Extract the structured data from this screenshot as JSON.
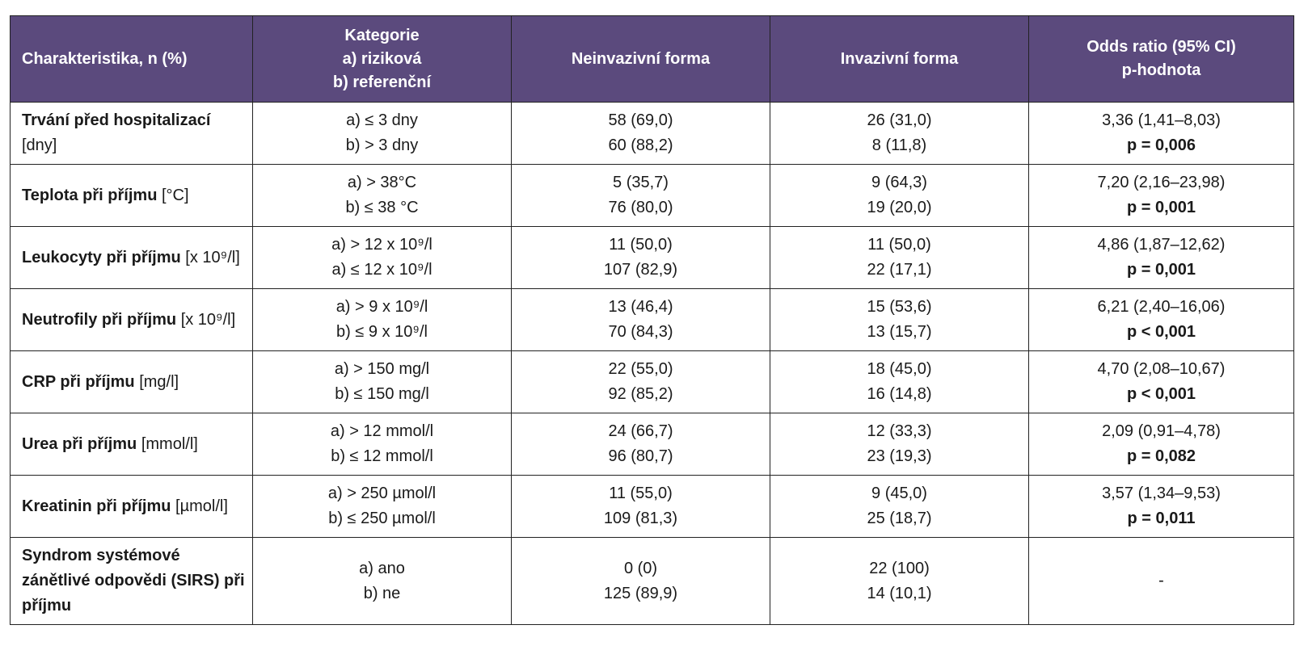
{
  "headers": {
    "characteristic": "Charakteristika, n (%)",
    "category": [
      "Kategorie",
      "a) riziková",
      "b) referenční"
    ],
    "noninvasive": "Neinvazivní forma",
    "invasive": "Invazivní forma",
    "odds": [
      "Odds ratio (95% CI)",
      "p-hodnota"
    ]
  },
  "rows": [
    {
      "name": "Trvání před hospitalizací",
      "unit": "[dny]",
      "cat_a": "a) ≤ 3 dny",
      "cat_b": "b) > 3 dny",
      "non_a": "58 (69,0)",
      "non_b": "60 (88,2)",
      "inv_a": "26 (31,0)",
      "inv_b": "8 (11,8)",
      "or": "3,36 (1,41–8,03)",
      "p": "p = 0,006"
    },
    {
      "name": "Teplota při příjmu",
      "unit": "[°C]",
      "cat_a": "a) > 38°C",
      "cat_b": "b) ≤ 38 °C",
      "non_a": "5 (35,7)",
      "non_b": "76 (80,0)",
      "inv_a": "9 (64,3)",
      "inv_b": "19 (20,0)",
      "or": "7,20 (2,16–23,98)",
      "p": "p = 0,001"
    },
    {
      "name": "Leukocyty při příjmu",
      "unit": "[x 10⁹/l]",
      "cat_a": "a) > 12 x 10⁹/l",
      "cat_b": "a) ≤ 12 x 10⁹/l",
      "non_a": "11 (50,0)",
      "non_b": "107 (82,9)",
      "inv_a": "11 (50,0)",
      "inv_b": "22 (17,1)",
      "or": "4,86 (1,87–12,62)",
      "p": "p = 0,001"
    },
    {
      "name": "Neutrofily při příjmu",
      "unit": "[x 10⁹/l]",
      "cat_a": "a) > 9 x 10⁹/l",
      "cat_b": "b) ≤ 9 x 10⁹/l",
      "non_a": "13 (46,4)",
      "non_b": "70 (84,3)",
      "inv_a": "15 (53,6)",
      "inv_b": "13 (15,7)",
      "or": "6,21 (2,40–16,06)",
      "p": "p < 0,001"
    },
    {
      "name": "CRP při příjmu",
      "unit": "[mg/l]",
      "cat_a": "a) > 150 mg/l",
      "cat_b": "b) ≤ 150 mg/l",
      "non_a": "22 (55,0)",
      "non_b": "92 (85,2)",
      "inv_a": "18 (45,0)",
      "inv_b": "16 (14,8)",
      "or": "4,70 (2,08–10,67)",
      "p": "p < 0,001"
    },
    {
      "name": "Urea při příjmu",
      "unit": "[mmol/l]",
      "cat_a": "a) > 12 mmol/l",
      "cat_b": "b) ≤ 12 mmol/l",
      "non_a": "24 (66,7)",
      "non_b": "96 (80,7)",
      "inv_a": "12 (33,3)",
      "inv_b": "23 (19,3)",
      "or": "2,09 (0,91–4,78)",
      "p": "p = 0,082"
    },
    {
      "name": "Kreatinin při příjmu",
      "unit": "[µmol/l]",
      "cat_a": "a) > 250 µmol/l",
      "cat_b": "b) ≤ 250 µmol/l",
      "non_a": "11 (55,0)",
      "non_b": "109 (81,3)",
      "inv_a": "9 (45,0)",
      "inv_b": "25 (18,7)",
      "or": "3,57 (1,34–9,53)",
      "p": "p = 0,011"
    },
    {
      "name": "Syndrom systémové zánětlivé odpovědi (SIRS) při příjmu",
      "unit": "",
      "cat_a": "a) ano",
      "cat_b": "b) ne",
      "non_a": "0 (0)",
      "non_b": "125 (89,9)",
      "inv_a": "22 (100)",
      "inv_b": "14 (10,1)",
      "or": "-",
      "p": ""
    }
  ]
}
